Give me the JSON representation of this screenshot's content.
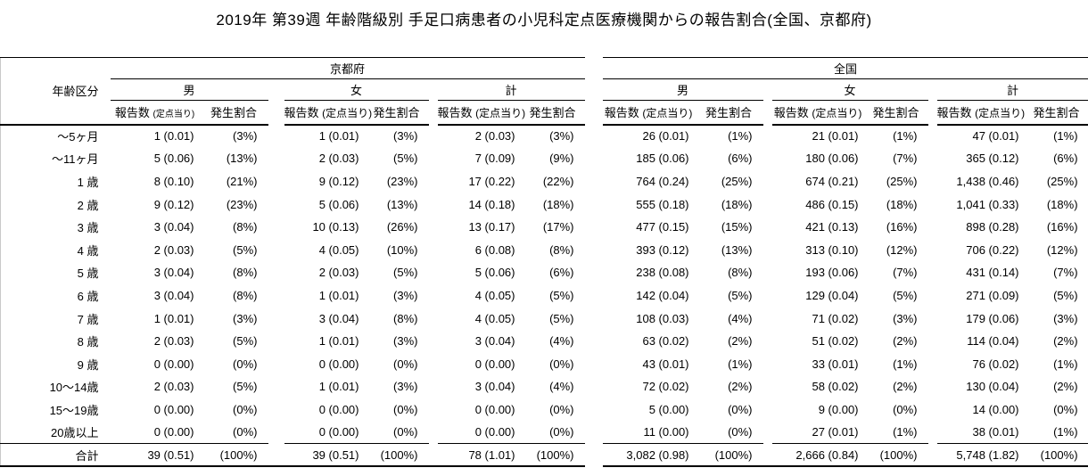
{
  "title": "2019年 第39週 年齢階級別 手足口病患者の小児科定点医療機関からの報告割合(全国、京都府)",
  "table": {
    "age_header": "年齢区分",
    "regions": [
      {
        "label": "京都府"
      },
      {
        "label": "全国"
      }
    ],
    "gender_headers": [
      "男",
      "女",
      "計"
    ],
    "subheader": {
      "count_main": "報告数",
      "count_paren": "(定点当り)",
      "pct": "発生割合"
    },
    "rows": [
      {
        "age": "～5ヶ月",
        "cells": [
          {
            "count": "1 (0.01)",
            "pct": "(3%)"
          },
          {
            "count": "1 (0.01)",
            "pct": "(3%)"
          },
          {
            "count": "2 (0.03)",
            "pct": "(3%)"
          },
          {
            "count": "26 (0.01)",
            "pct": "(1%)"
          },
          {
            "count": "21 (0.01)",
            "pct": "(1%)"
          },
          {
            "count": "47 (0.01)",
            "pct": "(1%)"
          }
        ]
      },
      {
        "age": "～11ヶ月",
        "cells": [
          {
            "count": "5 (0.06)",
            "pct": "(13%)"
          },
          {
            "count": "2 (0.03)",
            "pct": "(5%)"
          },
          {
            "count": "7 (0.09)",
            "pct": "(9%)"
          },
          {
            "count": "185 (0.06)",
            "pct": "(6%)"
          },
          {
            "count": "180 (0.06)",
            "pct": "(7%)"
          },
          {
            "count": "365 (0.12)",
            "pct": "(6%)"
          }
        ]
      },
      {
        "age": "1 歳",
        "cells": [
          {
            "count": "8 (0.10)",
            "pct": "(21%)"
          },
          {
            "count": "9 (0.12)",
            "pct": "(23%)"
          },
          {
            "count": "17 (0.22)",
            "pct": "(22%)"
          },
          {
            "count": "764 (0.24)",
            "pct": "(25%)"
          },
          {
            "count": "674 (0.21)",
            "pct": "(25%)"
          },
          {
            "count": "1,438 (0.46)",
            "pct": "(25%)"
          }
        ]
      },
      {
        "age": "2 歳",
        "cells": [
          {
            "count": "9 (0.12)",
            "pct": "(23%)"
          },
          {
            "count": "5 (0.06)",
            "pct": "(13%)"
          },
          {
            "count": "14 (0.18)",
            "pct": "(18%)"
          },
          {
            "count": "555 (0.18)",
            "pct": "(18%)"
          },
          {
            "count": "486 (0.15)",
            "pct": "(18%)"
          },
          {
            "count": "1,041 (0.33)",
            "pct": "(18%)"
          }
        ]
      },
      {
        "age": "3 歳",
        "cells": [
          {
            "count": "3 (0.04)",
            "pct": "(8%)"
          },
          {
            "count": "10 (0.13)",
            "pct": "(26%)"
          },
          {
            "count": "13 (0.17)",
            "pct": "(17%)"
          },
          {
            "count": "477 (0.15)",
            "pct": "(15%)"
          },
          {
            "count": "421 (0.13)",
            "pct": "(16%)"
          },
          {
            "count": "898 (0.28)",
            "pct": "(16%)"
          }
        ]
      },
      {
        "age": "4 歳",
        "cells": [
          {
            "count": "2 (0.03)",
            "pct": "(5%)"
          },
          {
            "count": "4 (0.05)",
            "pct": "(10%)"
          },
          {
            "count": "6 (0.08)",
            "pct": "(8%)"
          },
          {
            "count": "393 (0.12)",
            "pct": "(13%)"
          },
          {
            "count": "313 (0.10)",
            "pct": "(12%)"
          },
          {
            "count": "706 (0.22)",
            "pct": "(12%)"
          }
        ]
      },
      {
        "age": "5 歳",
        "cells": [
          {
            "count": "3 (0.04)",
            "pct": "(8%)"
          },
          {
            "count": "2 (0.03)",
            "pct": "(5%)"
          },
          {
            "count": "5 (0.06)",
            "pct": "(6%)"
          },
          {
            "count": "238 (0.08)",
            "pct": "(8%)"
          },
          {
            "count": "193 (0.06)",
            "pct": "(7%)"
          },
          {
            "count": "431 (0.14)",
            "pct": "(7%)"
          }
        ]
      },
      {
        "age": "6 歳",
        "cells": [
          {
            "count": "3 (0.04)",
            "pct": "(8%)"
          },
          {
            "count": "1 (0.01)",
            "pct": "(3%)"
          },
          {
            "count": "4 (0.05)",
            "pct": "(5%)"
          },
          {
            "count": "142 (0.04)",
            "pct": "(5%)"
          },
          {
            "count": "129 (0.04)",
            "pct": "(5%)"
          },
          {
            "count": "271 (0.09)",
            "pct": "(5%)"
          }
        ]
      },
      {
        "age": "7 歳",
        "cells": [
          {
            "count": "1 (0.01)",
            "pct": "(3%)"
          },
          {
            "count": "3 (0.04)",
            "pct": "(8%)"
          },
          {
            "count": "4 (0.05)",
            "pct": "(5%)"
          },
          {
            "count": "108 (0.03)",
            "pct": "(4%)"
          },
          {
            "count": "71 (0.02)",
            "pct": "(3%)"
          },
          {
            "count": "179 (0.06)",
            "pct": "(3%)"
          }
        ]
      },
      {
        "age": "8 歳",
        "cells": [
          {
            "count": "2 (0.03)",
            "pct": "(5%)"
          },
          {
            "count": "1 (0.01)",
            "pct": "(3%)"
          },
          {
            "count": "3 (0.04)",
            "pct": "(4%)"
          },
          {
            "count": "63 (0.02)",
            "pct": "(2%)"
          },
          {
            "count": "51 (0.02)",
            "pct": "(2%)"
          },
          {
            "count": "114 (0.04)",
            "pct": "(2%)"
          }
        ]
      },
      {
        "age": "9 歳",
        "cells": [
          {
            "count": "0 (0.00)",
            "pct": "(0%)"
          },
          {
            "count": "0 (0.00)",
            "pct": "(0%)"
          },
          {
            "count": "0 (0.00)",
            "pct": "(0%)"
          },
          {
            "count": "43 (0.01)",
            "pct": "(1%)"
          },
          {
            "count": "33 (0.01)",
            "pct": "(1%)"
          },
          {
            "count": "76 (0.02)",
            "pct": "(1%)"
          }
        ]
      },
      {
        "age": "10～14歳",
        "cells": [
          {
            "count": "2 (0.03)",
            "pct": "(5%)"
          },
          {
            "count": "1 (0.01)",
            "pct": "(3%)"
          },
          {
            "count": "3 (0.04)",
            "pct": "(4%)"
          },
          {
            "count": "72 (0.02)",
            "pct": "(2%)"
          },
          {
            "count": "58 (0.02)",
            "pct": "(2%)"
          },
          {
            "count": "130 (0.04)",
            "pct": "(2%)"
          }
        ]
      },
      {
        "age": "15～19歳",
        "cells": [
          {
            "count": "0 (0.00)",
            "pct": "(0%)"
          },
          {
            "count": "0 (0.00)",
            "pct": "(0%)"
          },
          {
            "count": "0 (0.00)",
            "pct": "(0%)"
          },
          {
            "count": "5 (0.00)",
            "pct": "(0%)"
          },
          {
            "count": "9 (0.00)",
            "pct": "(0%)"
          },
          {
            "count": "14 (0.00)",
            "pct": "(0%)"
          }
        ]
      },
      {
        "age": "20歳以上",
        "cells": [
          {
            "count": "0 (0.00)",
            "pct": "(0%)"
          },
          {
            "count": "0 (0.00)",
            "pct": "(0%)"
          },
          {
            "count": "0 (0.00)",
            "pct": "(0%)"
          },
          {
            "count": "11 (0.00)",
            "pct": "(0%)"
          },
          {
            "count": "27 (0.01)",
            "pct": "(1%)"
          },
          {
            "count": "38 (0.01)",
            "pct": "(1%)"
          }
        ]
      }
    ],
    "total": {
      "age": "合計",
      "cells": [
        {
          "count": "39 (0.51)",
          "pct": "(100%)"
        },
        {
          "count": "39 (0.51)",
          "pct": "(100%)"
        },
        {
          "count": "78 (1.01)",
          "pct": "(100%)"
        },
        {
          "count": "3,082 (0.98)",
          "pct": "(100%)"
        },
        {
          "count": "2,666 (0.84)",
          "pct": "(100%)"
        },
        {
          "count": "5,748 (1.82)",
          "pct": "(100%)"
        }
      ]
    }
  }
}
